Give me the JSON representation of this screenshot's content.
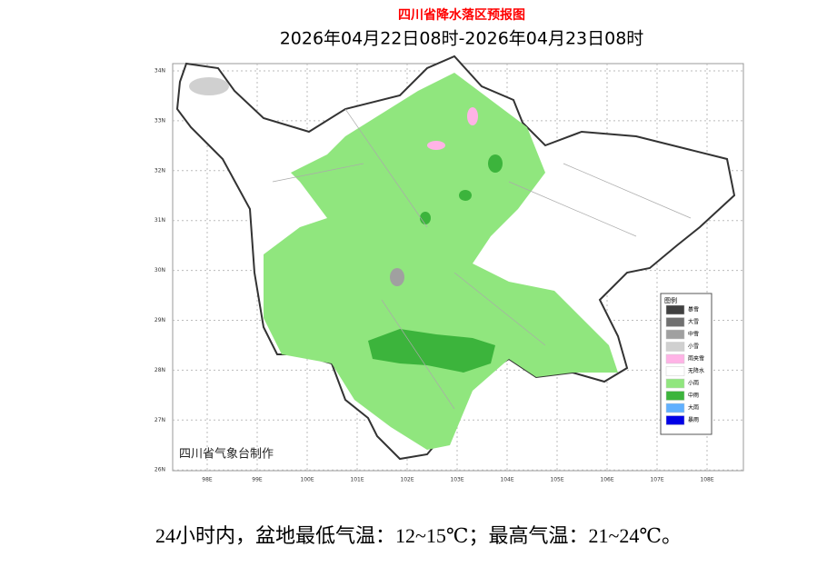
{
  "header": {
    "title": "四川省降水落区预报图",
    "subtitle": "2026年04月22日08时-2026年04月23日08时"
  },
  "map": {
    "lat_labels": [
      "34N",
      "33N",
      "32N",
      "31N",
      "30N",
      "29N",
      "28N",
      "27N",
      "26N"
    ],
    "lon_labels": [
      "98E",
      "99E",
      "100E",
      "101E",
      "102E",
      "103E",
      "104E",
      "105E",
      "106E",
      "107E",
      "108E"
    ],
    "credit": "四川省气象台制作"
  },
  "legend": {
    "title": "图例",
    "items": [
      {
        "label": "暴雪",
        "color": "#404040"
      },
      {
        "label": "大雪",
        "color": "#707070"
      },
      {
        "label": "中雪",
        "color": "#a0a0a0"
      },
      {
        "label": "小雪",
        "color": "#d0d0d0"
      },
      {
        "label": "雨夹雪",
        "color": "#ffb3e6"
      },
      {
        "label": "无降水",
        "color": "#ffffff"
      },
      {
        "label": "小雨",
        "color": "#90e67e"
      },
      {
        "label": "中雨",
        "color": "#3cb43c"
      },
      {
        "label": "大雨",
        "color": "#60b0ff"
      },
      {
        "label": "暴雨",
        "color": "#0000e6"
      }
    ]
  },
  "caption": "24小时内，盆地最低气温：12~15℃；最高气温：21~24℃。"
}
